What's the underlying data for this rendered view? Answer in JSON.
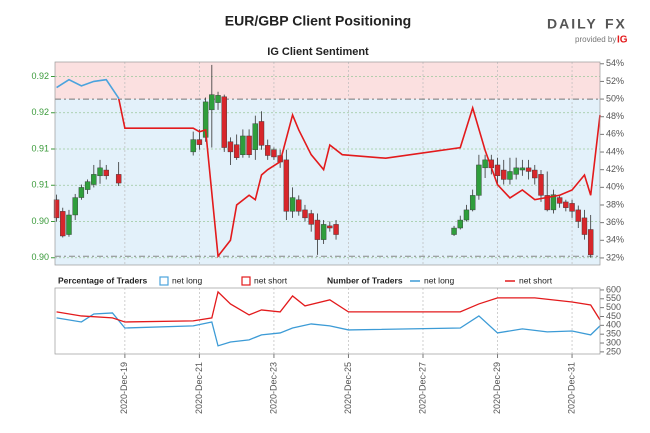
{
  "header": {
    "logo_left": "DAILY",
    "logo_right": "FX",
    "provided_by": "provided by",
    "brand": "IG"
  },
  "chart_data": [
    {
      "type": "candlestick",
      "title": "EUR/GBP Client Positioning",
      "subtitle": "IG Client Sentiment",
      "x": [
        "2020-12-17T04:00",
        "2020-12-17T08:00",
        "2020-12-17T12:00",
        "2020-12-17T16:00",
        "2020-12-17T20:00",
        "2020-12-18T00:00",
        "2020-12-18T04:00",
        "2020-12-18T08:00",
        "2020-12-18T12:00",
        "2020-12-18T20:00",
        "2020-12-20T20:00",
        "2020-12-21T00:00",
        "2020-12-21T04:00",
        "2020-12-21T08:00",
        "2020-12-21T12:00",
        "2020-12-21T16:00",
        "2020-12-21T20:00",
        "2020-12-22T00:00",
        "2020-12-22T04:00",
        "2020-12-22T08:00",
        "2020-12-22T12:00",
        "2020-12-22T16:00",
        "2020-12-22T20:00",
        "2020-12-23T00:00",
        "2020-12-23T04:00",
        "2020-12-23T08:00",
        "2020-12-23T12:00",
        "2020-12-23T16:00",
        "2020-12-23T20:00",
        "2020-12-24T00:00",
        "2020-12-24T04:00",
        "2020-12-24T08:00",
        "2020-12-24T12:00",
        "2020-12-24T16:00",
        "2020-12-27T20:00",
        "2020-12-28T00:00",
        "2020-12-28T04:00",
        "2020-12-28T08:00",
        "2020-12-28T12:00",
        "2020-12-28T16:00",
        "2020-12-28T20:00",
        "2020-12-29T00:00",
        "2020-12-29T04:00",
        "2020-12-29T08:00",
        "2020-12-29T12:00",
        "2020-12-29T16:00",
        "2020-12-29T20:00",
        "2020-12-30T00:00",
        "2020-12-30T04:00",
        "2020-12-30T08:00",
        "2020-12-30T12:00",
        "2020-12-30T16:00",
        "2020-12-30T20:00",
        "2020-12-31T00:00",
        "2020-12-31T04:00",
        "2020-12-31T08:00",
        "2020-12-31T12:00"
      ],
      "open": [
        0.9055,
        0.9039,
        0.9007,
        0.9034,
        0.9058,
        0.9069,
        0.9076,
        0.9088,
        0.9096,
        0.909,
        0.9121,
        0.9138,
        0.9141,
        0.9179,
        0.9189,
        0.9197,
        0.9135,
        0.9131,
        0.9117,
        0.9143,
        0.9124,
        0.9163,
        0.913,
        0.9124,
        0.9116,
        0.911,
        0.9039,
        0.9055,
        0.9041,
        0.9036,
        0.9027,
        0.9,
        0.9019,
        0.9021,
        0.9007,
        0.9016,
        0.9027,
        0.9041,
        0.9061,
        0.9099,
        0.911,
        0.9103,
        0.9096,
        0.9083,
        0.909,
        0.9096,
        0.9099,
        0.9096,
        0.909,
        0.9061,
        0.9041,
        0.9058,
        0.9052,
        0.905,
        0.9041,
        0.903,
        0.9014
      ],
      "high": [
        0.9062,
        0.9044,
        0.9041,
        0.9063,
        0.9076,
        0.9083,
        0.9103,
        0.911,
        0.9103,
        0.9107,
        0.9149,
        0.9152,
        0.9196,
        0.9241,
        0.9204,
        0.92,
        0.9141,
        0.9145,
        0.9152,
        0.9152,
        0.9171,
        0.9177,
        0.9138,
        0.9127,
        0.9124,
        0.9124,
        0.9072,
        0.9061,
        0.9048,
        0.9041,
        0.9036,
        0.9027,
        0.9025,
        0.9027,
        0.9019,
        0.9033,
        0.9048,
        0.9069,
        0.9117,
        0.9117,
        0.9117,
        0.9113,
        0.911,
        0.9113,
        0.9113,
        0.911,
        0.911,
        0.9103,
        0.9096,
        0.9094,
        0.9069,
        0.9062,
        0.9055,
        0.9055,
        0.9047,
        0.9041,
        0.9034
      ],
      "low": [
        0.9025,
        0.9003,
        0.9004,
        0.9027,
        0.9055,
        0.9063,
        0.9072,
        0.9077,
        0.9083,
        0.9074,
        0.9116,
        0.9124,
        0.9135,
        0.9127,
        0.9179,
        0.9121,
        0.9103,
        0.911,
        0.9113,
        0.9113,
        0.911,
        0.9124,
        0.911,
        0.911,
        0.9099,
        0.9027,
        0.903,
        0.9033,
        0.9025,
        0.9011,
        0.8979,
        0.8994,
        0.9011,
        0.9,
        0.9005,
        0.9014,
        0.9025,
        0.9039,
        0.9055,
        0.9085,
        0.909,
        0.9076,
        0.9076,
        0.9076,
        0.9083,
        0.9088,
        0.9083,
        0.9076,
        0.9052,
        0.9039,
        0.9036,
        0.9044,
        0.9039,
        0.903,
        0.9016,
        0.9,
        0.8975
      ],
      "close": [
        0.903,
        0.9005,
        0.9034,
        0.9058,
        0.9072,
        0.908,
        0.909,
        0.9099,
        0.9088,
        0.9078,
        0.9138,
        0.9131,
        0.919,
        0.92,
        0.9199,
        0.9127,
        0.9121,
        0.9113,
        0.9143,
        0.9117,
        0.916,
        0.913,
        0.9116,
        0.9114,
        0.9107,
        0.9039,
        0.9058,
        0.9039,
        0.903,
        0.9021,
        0.9,
        0.9021,
        0.9016,
        0.9007,
        0.9016,
        0.9027,
        0.9041,
        0.9061,
        0.9103,
        0.911,
        0.9099,
        0.9088,
        0.9083,
        0.9094,
        0.9099,
        0.9099,
        0.9094,
        0.9085,
        0.9061,
        0.9041,
        0.9062,
        0.905,
        0.9044,
        0.9039,
        0.9025,
        0.9007,
        0.8979
      ],
      "up_color": "#2f9e3c",
      "down_color": "#d7262b",
      "xlim": [
        "2020-12-17T03:00",
        "2020-12-31T18:00"
      ],
      "ylim": [
        0.8965,
        0.9245
      ],
      "yticks": [
        {
          "value": 0.9225,
          "label": "0.92"
        },
        {
          "value": 0.9175,
          "label": "0.92"
        },
        {
          "value": 0.9125,
          "label": "0.91"
        },
        {
          "value": 0.9075,
          "label": "0.91"
        },
        {
          "value": 0.9025,
          "label": "0.90"
        },
        {
          "value": 0.8975,
          "label": "0.90"
        }
      ],
      "last_price": 0.8977,
      "y2lim": [
        31.2,
        54.2
      ],
      "y2ticks": [
        {
          "value": 32,
          "label": "32%"
        },
        {
          "value": 34,
          "label": "34%"
        },
        {
          "value": 36,
          "label": "36%"
        },
        {
          "value": 38,
          "label": "38%"
        },
        {
          "value": 40,
          "label": "40%"
        },
        {
          "value": 42,
          "label": "42%"
        },
        {
          "value": 44,
          "label": "44%"
        },
        {
          "value": 46,
          "label": "46%"
        },
        {
          "value": 48,
          "label": "48%"
        },
        {
          "value": 50,
          "label": "50%"
        },
        {
          "value": 52,
          "label": "52%"
        },
        {
          "value": 54,
          "label": "54%"
        }
      ],
      "threshold": 50,
      "legend_title": "Percentage of Traders",
      "areas": [
        {
          "name": "net long",
          "color": "#4ba3dd",
          "fill": "#e3f1fa"
        },
        {
          "name": "net short",
          "color": "#e31a1c",
          "fill": "#fbe0e0"
        }
      ],
      "series": [
        {
          "axis": "y2",
          "x": [
            "2020-12-17T04:00",
            "2020-12-17T12:00",
            "2020-12-17T20:00",
            "2020-12-18T04:00",
            "2020-12-18T12:00",
            "2020-12-18T20:00",
            "2020-12-19T00:00",
            "2020-12-20T20:00",
            "2020-12-21T00:00",
            "2020-12-21T04:00",
            "2020-12-21T12:00",
            "2020-12-21T20:00",
            "2020-12-22T00:00",
            "2020-12-22T08:00",
            "2020-12-22T12:00",
            "2020-12-22T16:00",
            "2020-12-22T20:00",
            "2020-12-23T04:00",
            "2020-12-23T12:00",
            "2020-12-23T16:00",
            "2020-12-24T00:00",
            "2020-12-24T08:00",
            "2020-12-24T12:00",
            "2020-12-24T20:00",
            "2020-12-26T00:00",
            "2020-12-28T00:00",
            "2020-12-28T08:00",
            "2020-12-28T16:00",
            "2020-12-29T00:00",
            "2020-12-29T08:00",
            "2020-12-29T16:00",
            "2020-12-30T00:00",
            "2020-12-30T16:00",
            "2020-12-31T00:00",
            "2020-12-31T08:00",
            "2020-12-31T12:00",
            "2020-12-31T18:00"
          ],
          "values": [
            51.3,
            52.2,
            51.5,
            52.0,
            52.2,
            50.1,
            46.7,
            46.7,
            46.3,
            46.5,
            32.2,
            34.0,
            38.0,
            39.1,
            38.6,
            41.4,
            42.0,
            42.9,
            48.2,
            46.5,
            43.7,
            42.0,
            44.8,
            43.7,
            43.3,
            44.5,
            49.0,
            44.2,
            40.3,
            38.8,
            39.7,
            38.6,
            39.1,
            39.7,
            41.4,
            39.1,
            48.2
          ]
        }
      ]
    },
    {
      "type": "line",
      "title": "Number of Traders",
      "xlim": [
        "2020-12-17T03:00",
        "2020-12-31T18:00"
      ],
      "xticks": [
        {
          "value": "2020-12-19T00:00",
          "label": "2020-Dec-19"
        },
        {
          "value": "2020-12-21T00:00",
          "label": "2020-Dec-21"
        },
        {
          "value": "2020-12-23T00:00",
          "label": "2020-Dec-23"
        },
        {
          "value": "2020-12-25T00:00",
          "label": "2020-Dec-25"
        },
        {
          "value": "2020-12-27T00:00",
          "label": "2020-Dec-27"
        },
        {
          "value": "2020-12-29T00:00",
          "label": "2020-Dec-29"
        },
        {
          "value": "2020-12-31T00:00",
          "label": "2020-Dec-31"
        }
      ],
      "ylim": [
        238,
        611
      ],
      "yticks": [
        250,
        300,
        350,
        400,
        450,
        500,
        550,
        600
      ],
      "series": [
        {
          "name": "net long",
          "color": "#3c9bd6",
          "x": [
            "2020-12-17T04:00",
            "2020-12-17T20:00",
            "2020-12-18T04:00",
            "2020-12-18T16:00",
            "2020-12-19T00:00",
            "2020-12-20T20:00",
            "2020-12-21T08:00",
            "2020-12-21T12:00",
            "2020-12-21T20:00",
            "2020-12-22T08:00",
            "2020-12-22T16:00",
            "2020-12-23T04:00",
            "2020-12-23T12:00",
            "2020-12-24T00:00",
            "2020-12-24T12:00",
            "2020-12-25T00:00",
            "2020-12-28T00:00",
            "2020-12-28T12:00",
            "2020-12-29T00:00",
            "2020-12-29T16:00",
            "2020-12-30T08:00",
            "2020-12-31T00:00",
            "2020-12-31T12:00",
            "2020-12-31T18:00"
          ],
          "values": [
            442,
            419,
            464,
            470,
            385,
            397,
            419,
            284,
            306,
            318,
            346,
            357,
            385,
            408,
            397,
            374,
            385,
            453,
            357,
            380,
            363,
            368,
            346,
            397
          ]
        },
        {
          "name": "net short",
          "color": "#e31a1c",
          "x": [
            "2020-12-17T04:00",
            "2020-12-17T20:00",
            "2020-12-18T16:00",
            "2020-12-19T00:00",
            "2020-12-20T20:00",
            "2020-12-21T08:00",
            "2020-12-21T12:00",
            "2020-12-21T20:00",
            "2020-12-22T08:00",
            "2020-12-22T16:00",
            "2020-12-23T04:00",
            "2020-12-23T12:00",
            "2020-12-23T20:00",
            "2020-12-24T12:00",
            "2020-12-25T00:00",
            "2020-12-28T00:00",
            "2020-12-28T12:00",
            "2020-12-29T00:00",
            "2020-12-30T00:00",
            "2020-12-31T00:00",
            "2020-12-31T12:00",
            "2020-12-31T18:00"
          ],
          "values": [
            476,
            453,
            442,
            419,
            425,
            442,
            589,
            521,
            459,
            487,
            476,
            566,
            510,
            544,
            476,
            476,
            521,
            555,
            555,
            532,
            515,
            431
          ]
        }
      ]
    }
  ]
}
